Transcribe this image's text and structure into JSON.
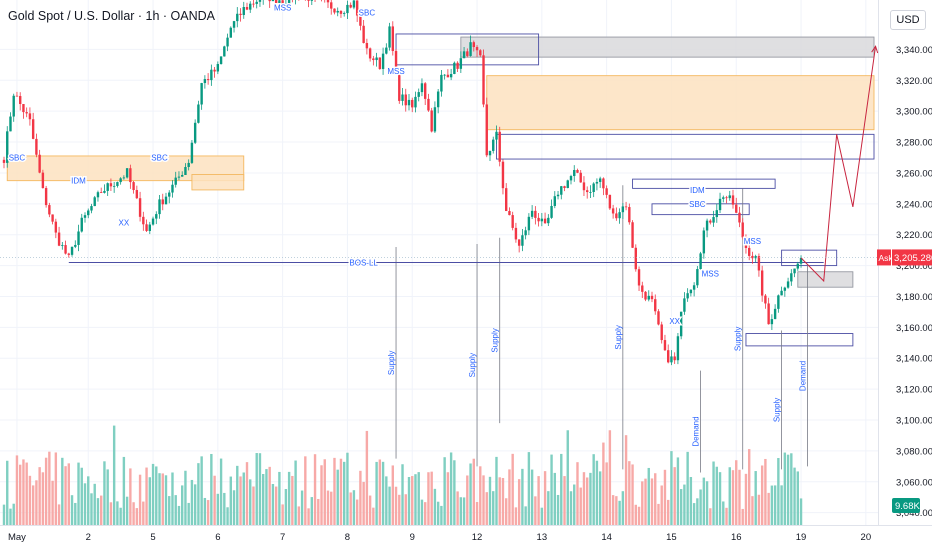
{
  "header": {
    "title": "Gold Spot / U.S. Dollar · 1h · OANDA",
    "currency": "USD"
  },
  "chart_data": {
    "type": "candlestick",
    "ylim": [
      3032,
      3372
    ],
    "yticks": [
      3040,
      3060,
      3080,
      3100,
      3120,
      3140,
      3160,
      3180,
      3200,
      3220,
      3240,
      3260,
      3280,
      3300,
      3320,
      3340
    ],
    "ytick_labels": [
      "3,040.000",
      "3,060.000",
      "3,080.000",
      "3,100.000",
      "3,120.000",
      "3,140.000",
      "3,160.000",
      "3,180.000",
      "3,200.000",
      "3,220.000",
      "3,240.000",
      "3,260.000",
      "3,280.000",
      "3,300.000",
      "3,320.000",
      "3,340.000"
    ],
    "xticks": [
      {
        "label": "May",
        "bar": 4
      },
      {
        "label": "2",
        "bar": 26
      },
      {
        "label": "5",
        "bar": 46
      },
      {
        "label": "6",
        "bar": 66
      },
      {
        "label": "7",
        "bar": 86
      },
      {
        "label": "8",
        "bar": 106
      },
      {
        "label": "9",
        "bar": 126
      },
      {
        "label": "12",
        "bar": 146
      },
      {
        "label": "13",
        "bar": 166
      },
      {
        "label": "14",
        "bar": 186
      },
      {
        "label": "15",
        "bar": 206
      },
      {
        "label": "16",
        "bar": 226
      },
      {
        "label": "19",
        "bar": 246
      },
      {
        "label": "20",
        "bar": 266
      }
    ],
    "ask": {
      "label": "Ask",
      "price": 3205.28,
      "price_label": "3,205.280",
      "color": "#f23645"
    },
    "volume_badge": "9.68K",
    "colors": {
      "up": "#089981",
      "down": "#f23645",
      "vol_up": "#7fcfc1",
      "vol_down": "#f7a9a7",
      "zone_fill": "#fde2bf",
      "zone_stroke": "#f4b860",
      "gray_fill": "#d9d9dc",
      "purple": "#4b4ea4",
      "arrow": "#c8253f",
      "label": "#2962ff",
      "grid": "#f0f3fa"
    },
    "anchors": [
      {
        "bar": 0,
        "price": 3270
      },
      {
        "bar": 3,
        "price": 3312
      },
      {
        "bar": 8,
        "price": 3293
      },
      {
        "bar": 12,
        "price": 3248
      },
      {
        "bar": 16,
        "price": 3220
      },
      {
        "bar": 20,
        "price": 3204
      },
      {
        "bar": 24,
        "price": 3228
      },
      {
        "bar": 30,
        "price": 3248
      },
      {
        "bar": 38,
        "price": 3260
      },
      {
        "bar": 44,
        "price": 3222
      },
      {
        "bar": 48,
        "price": 3240
      },
      {
        "bar": 53,
        "price": 3254
      },
      {
        "bar": 57,
        "price": 3268
      },
      {
        "bar": 61,
        "price": 3318
      },
      {
        "bar": 66,
        "price": 3328
      },
      {
        "bar": 70,
        "price": 3354
      },
      {
        "bar": 74,
        "price": 3366
      },
      {
        "bar": 80,
        "price": 3375
      },
      {
        "bar": 86,
        "price": 3372
      },
      {
        "bar": 92,
        "price": 3376
      },
      {
        "bar": 98,
        "price": 3370
      },
      {
        "bar": 104,
        "price": 3366
      },
      {
        "bar": 108,
        "price": 3370
      },
      {
        "bar": 112,
        "price": 3338
      },
      {
        "bar": 116,
        "price": 3330
      },
      {
        "bar": 119,
        "price": 3352
      },
      {
        "bar": 122,
        "price": 3310
      },
      {
        "bar": 126,
        "price": 3302
      },
      {
        "bar": 129,
        "price": 3320
      },
      {
        "bar": 132,
        "price": 3290
      },
      {
        "bar": 135,
        "price": 3322
      },
      {
        "bar": 140,
        "price": 3330
      },
      {
        "bar": 144,
        "price": 3342
      },
      {
        "bar": 147,
        "price": 3333
      },
      {
        "bar": 149,
        "price": 3272
      },
      {
        "bar": 152,
        "price": 3284
      },
      {
        "bar": 155,
        "price": 3236
      },
      {
        "bar": 159,
        "price": 3212
      },
      {
        "bar": 163,
        "price": 3236
      },
      {
        "bar": 167,
        "price": 3224
      },
      {
        "bar": 171,
        "price": 3248
      },
      {
        "bar": 176,
        "price": 3260
      },
      {
        "bar": 180,
        "price": 3248
      },
      {
        "bar": 184,
        "price": 3256
      },
      {
        "bar": 188,
        "price": 3232
      },
      {
        "bar": 192,
        "price": 3240
      },
      {
        "bar": 196,
        "price": 3186
      },
      {
        "bar": 200,
        "price": 3176
      },
      {
        "bar": 204,
        "price": 3142
      },
      {
        "bar": 207,
        "price": 3138
      },
      {
        "bar": 210,
        "price": 3182
      },
      {
        "bar": 213,
        "price": 3190
      },
      {
        "bar": 216,
        "price": 3222
      },
      {
        "bar": 222,
        "price": 3246
      },
      {
        "bar": 225,
        "price": 3240
      },
      {
        "bar": 229,
        "price": 3212
      },
      {
        "bar": 232,
        "price": 3204
      },
      {
        "bar": 236,
        "price": 3162
      },
      {
        "bar": 240,
        "price": 3186
      },
      {
        "bar": 243,
        "price": 3194
      },
      {
        "bar": 246,
        "price": 3205
      }
    ],
    "zones": [
      {
        "kind": "orange",
        "x0": 1,
        "x1": 74,
        "p0": 3271,
        "p1": 3255
      },
      {
        "kind": "orange",
        "x0": 58,
        "x1": 74,
        "p0": 3259,
        "p1": 3249
      },
      {
        "kind": "orange",
        "x0": 149,
        "x1": 283,
        "p0": 3323,
        "p1": 3288
      },
      {
        "kind": "gray",
        "x0": 141,
        "x1": 283,
        "p0": 3348,
        "p1": 3335
      },
      {
        "kind": "box",
        "x0": 152,
        "x1": 283,
        "p0": 3285,
        "p1": 3269
      },
      {
        "kind": "box",
        "x0": 121,
        "x1": 165,
        "p0": 3350,
        "p1": 3330
      },
      {
        "kind": "box",
        "x0": 194,
        "x1": 238,
        "p0": 3256,
        "p1": 3250
      },
      {
        "kind": "box",
        "x0": 200,
        "x1": 230,
        "p0": 3240,
        "p1": 3233
      },
      {
        "kind": "box",
        "x0": 240,
        "x1": 257,
        "p0": 3210,
        "p1": 3200
      },
      {
        "kind": "gray",
        "x0": 245,
        "x1": 262,
        "p0": 3196,
        "p1": 3186
      },
      {
        "kind": "box",
        "x0": 229,
        "x1": 262,
        "p0": 3156,
        "p1": 3148
      }
    ],
    "bos_line": {
      "x0": 20,
      "x1": 253,
      "price": 3202
    },
    "projection": [
      {
        "bar": 246,
        "price": 3205
      },
      {
        "bar": 253,
        "price": 3190
      },
      {
        "bar": 257,
        "price": 3285
      },
      {
        "bar": 262,
        "price": 3238
      },
      {
        "bar": 269,
        "price": 3342
      }
    ],
    "vlines": [
      {
        "bar": 121,
        "p0": 3212,
        "p1": 3075,
        "label": "Supply"
      },
      {
        "bar": 146,
        "p0": 3214,
        "p1": 3070,
        "label": "Supply"
      },
      {
        "bar": 153,
        "p0": 3218,
        "p1": 3098,
        "label": "Supply"
      },
      {
        "bar": 191,
        "p0": 3252,
        "p1": 3068,
        "label": "Supply"
      },
      {
        "bar": 215,
        "p0": 3132,
        "p1": 3066,
        "label": "Demand"
      },
      {
        "bar": 228,
        "p0": 3250,
        "p1": 3068,
        "label": "Supply"
      },
      {
        "bar": 240,
        "p0": 3158,
        "p1": 3068,
        "label": "Supply"
      },
      {
        "bar": 248,
        "p0": 3200,
        "p1": 3070,
        "label": "Demand"
      }
    ],
    "annotations": [
      {
        "text": "SBC",
        "bar": 4,
        "price": 3270
      },
      {
        "text": "IDM",
        "bar": 23,
        "price": 3255
      },
      {
        "text": "SBC",
        "bar": 48,
        "price": 3270
      },
      {
        "text": "XX",
        "bar": 37,
        "price": 3228
      },
      {
        "text": "MSS",
        "bar": 86,
        "price": 3367
      },
      {
        "text": "SBC",
        "bar": 112,
        "price": 3364
      },
      {
        "text": "MSS",
        "bar": 121,
        "price": 3326
      },
      {
        "text": "BOS-LL",
        "bar": 111,
        "price": 3202
      },
      {
        "text": "IDM",
        "bar": 214,
        "price": 3249
      },
      {
        "text": "SBC",
        "bar": 214,
        "price": 3240
      },
      {
        "text": "MSS",
        "bar": 218,
        "price": 3195
      },
      {
        "text": "MSS",
        "bar": 231,
        "price": 3216
      },
      {
        "text": "XX",
        "bar": 207,
        "price": 3164
      }
    ]
  }
}
